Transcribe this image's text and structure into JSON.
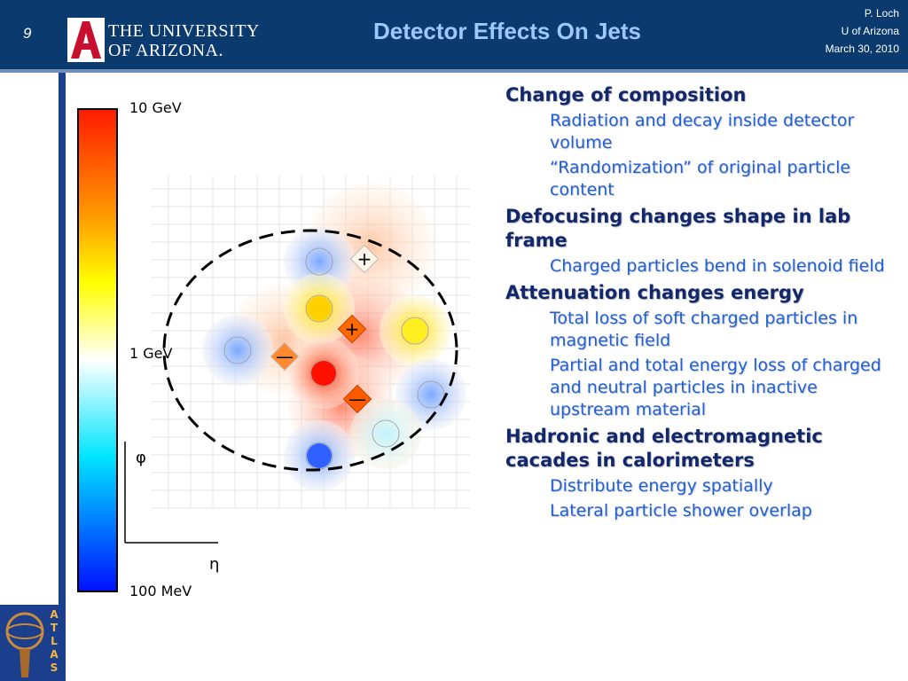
{
  "header": {
    "slide_number": "9",
    "logo_line1": "THE UNIVERSITY",
    "logo_line2": "OF ARIZONA.",
    "title": "Detector Effects On Jets",
    "author": "P. Loch",
    "affiliation": "U of Arizona",
    "date": "March 30, 2010"
  },
  "figure": {
    "scale_top": "10 GeV",
    "scale_mid": "1 GeV",
    "scale_bottom": "100 MeV",
    "axis_y": "φ",
    "axis_x": "η",
    "signs": [
      "+",
      "+",
      "—",
      "—"
    ]
  },
  "bullets": [
    {
      "text": "Change of composition",
      "sub": [
        "Radiation and decay inside detector volume",
        "“Randomization” of original particle content"
      ]
    },
    {
      "text": "Defocusing changes shape in lab frame",
      "sub": [
        "Charged particles bend in solenoid field"
      ]
    },
    {
      "text": "Attenuation changes energy",
      "sub": [
        "Total loss of soft charged particles in magnetic field",
        "Partial and total energy loss of charged and neutral particles in inactive upstream material"
      ]
    },
    {
      "text": "Hadronic and electromagnetic cacades in calorimeters",
      "sub": [
        "Distribute energy spatially",
        "Lateral particle shower overlap"
      ]
    }
  ],
  "atlas_logo": "ATLAS"
}
